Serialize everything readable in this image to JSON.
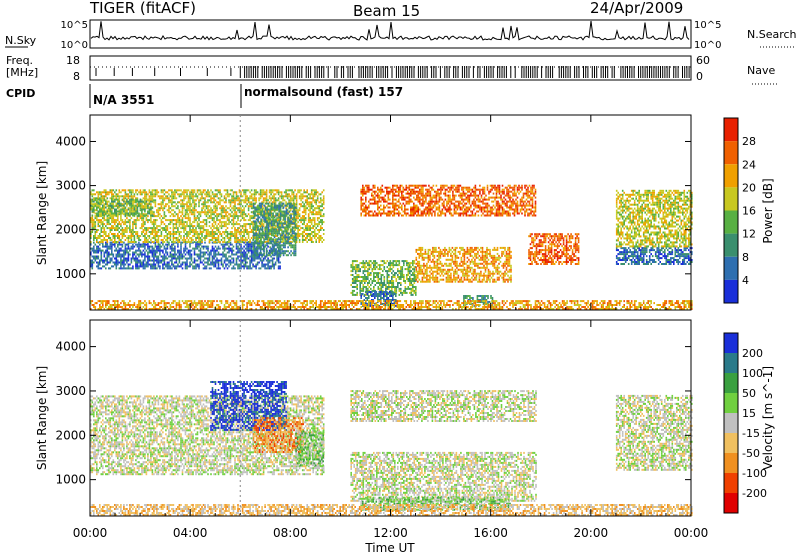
{
  "header": {
    "radar": "TIGER (fitACF)",
    "beam": "Beam 15",
    "date": "24/Apr/2009"
  },
  "strips": {
    "nsky": {
      "label": "N.Sky",
      "ticks": [
        "10^5",
        "10^0"
      ]
    },
    "nsearch": {
      "label": "N.Search",
      "ticks": [
        "10^5",
        "10^0"
      ]
    },
    "freq": {
      "label_top": "Freq.",
      "label_bottom": "[MHz]",
      "ticks": [
        "18",
        "8"
      ]
    },
    "nave": {
      "label": "Nave",
      "ticks": [
        "60",
        "0"
      ]
    },
    "cpid": {
      "label": "CPID"
    }
  },
  "modes": [
    {
      "text": "N/A 3551",
      "start_hour": 0
    },
    {
      "text": "normalsound (fast) 157",
      "start_hour": 6
    }
  ],
  "colors": {
    "power": [
      "#1a2fd9",
      "#2e6fb0",
      "#3a8f6e",
      "#58b043",
      "#c8c820",
      "#f0a000",
      "#f06000",
      "#e82000"
    ],
    "velocity": [
      "#1a2fd9",
      "#2a7a8a",
      "#3aa040",
      "#70d040",
      "#c0c0c0",
      "#f0c060",
      "#f09020",
      "#f04000",
      "#e00000"
    ]
  },
  "chart_data": [
    {
      "type": "heatmap",
      "title": "",
      "xlabel": "Time UT",
      "ylabel": "Slant Range [km]",
      "xlim": [
        0,
        24
      ],
      "ylim": [
        180,
        4600
      ],
      "x_ticks": [
        "00:00",
        "04:00",
        "08:00",
        "12:00",
        "16:00",
        "20:00",
        "00:00"
      ],
      "y_ticks": [
        1000,
        2000,
        3000,
        4000
      ],
      "colorbar": {
        "label": "Power [dB]",
        "ticks": [
          "28",
          "24",
          "20",
          "16",
          "12",
          "8",
          "4"
        ]
      },
      "regions": [
        {
          "t0": 0.0,
          "t1": 7.6,
          "r0": 1100,
          "r1": 1700,
          "level": 6
        },
        {
          "t0": 0.0,
          "t1": 9.3,
          "r0": 1700,
          "r1": 2900,
          "level": 3
        },
        {
          "t0": 0.0,
          "t1": 2.5,
          "r0": 2300,
          "r1": 2700,
          "level": 4
        },
        {
          "t0": 6.5,
          "t1": 8.2,
          "r0": 1400,
          "r1": 2600,
          "level": 5
        },
        {
          "t0": 10.4,
          "t1": 13.0,
          "r0": 500,
          "r1": 1300,
          "level": 4
        },
        {
          "t0": 10.8,
          "t1": 12.2,
          "r0": 250,
          "r1": 600,
          "level": 6
        },
        {
          "t0": 13.0,
          "t1": 16.8,
          "r0": 800,
          "r1": 1600,
          "level": 2
        },
        {
          "t0": 14.9,
          "t1": 16.1,
          "r0": 250,
          "r1": 500,
          "level": 5
        },
        {
          "t0": 10.8,
          "t1": 17.8,
          "r0": 2300,
          "r1": 3000,
          "level": 1
        },
        {
          "t0": 17.5,
          "t1": 19.5,
          "r0": 1200,
          "r1": 1900,
          "level": 1
        },
        {
          "t0": 21.0,
          "t1": 24.0,
          "r0": 1200,
          "r1": 1600,
          "level": 6
        },
        {
          "t0": 21.0,
          "t1": 24.0,
          "r0": 1600,
          "r1": 2900,
          "level": 3
        },
        {
          "t0": 0.0,
          "t1": 24.0,
          "r0": 180,
          "r1": 400,
          "level": 2
        }
      ]
    },
    {
      "type": "heatmap",
      "title": "",
      "xlabel": "Time UT",
      "ylabel": "Slant Range [km]",
      "xlim": [
        0,
        24
      ],
      "ylim": [
        180,
        4600
      ],
      "x_ticks": [
        "00:00",
        "04:00",
        "08:00",
        "12:00",
        "16:00",
        "20:00",
        "00:00"
      ],
      "y_ticks": [
        1000,
        2000,
        3000,
        4000
      ],
      "colorbar": {
        "label": "Velocity [m s^-1]",
        "ticks": [
          "200",
          "100",
          "50",
          "15",
          "-15",
          "-50",
          "-100",
          "-200"
        ]
      },
      "regions": [
        {
          "t0": 0.0,
          "t1": 9.3,
          "r0": 1100,
          "r1": 2900,
          "level": 4
        },
        {
          "t0": 4.8,
          "t1": 7.8,
          "r0": 2100,
          "r1": 3200,
          "level": 0
        },
        {
          "t0": 6.5,
          "t1": 8.5,
          "r0": 1600,
          "r1": 2400,
          "level": 6
        },
        {
          "t0": 8.2,
          "t1": 9.3,
          "r0": 1300,
          "r1": 2100,
          "level": 3
        },
        {
          "t0": 10.4,
          "t1": 17.8,
          "r0": 500,
          "r1": 1600,
          "level": 4
        },
        {
          "t0": 10.4,
          "t1": 17.8,
          "r0": 2300,
          "r1": 3000,
          "level": 4
        },
        {
          "t0": 10.8,
          "t1": 16.8,
          "r0": 300,
          "r1": 600,
          "level": 3
        },
        {
          "t0": 21.0,
          "t1": 24.0,
          "r0": 1200,
          "r1": 2900,
          "level": 4
        },
        {
          "t0": 0.0,
          "t1": 24.0,
          "r0": 180,
          "r1": 450,
          "level": 5
        }
      ]
    }
  ]
}
